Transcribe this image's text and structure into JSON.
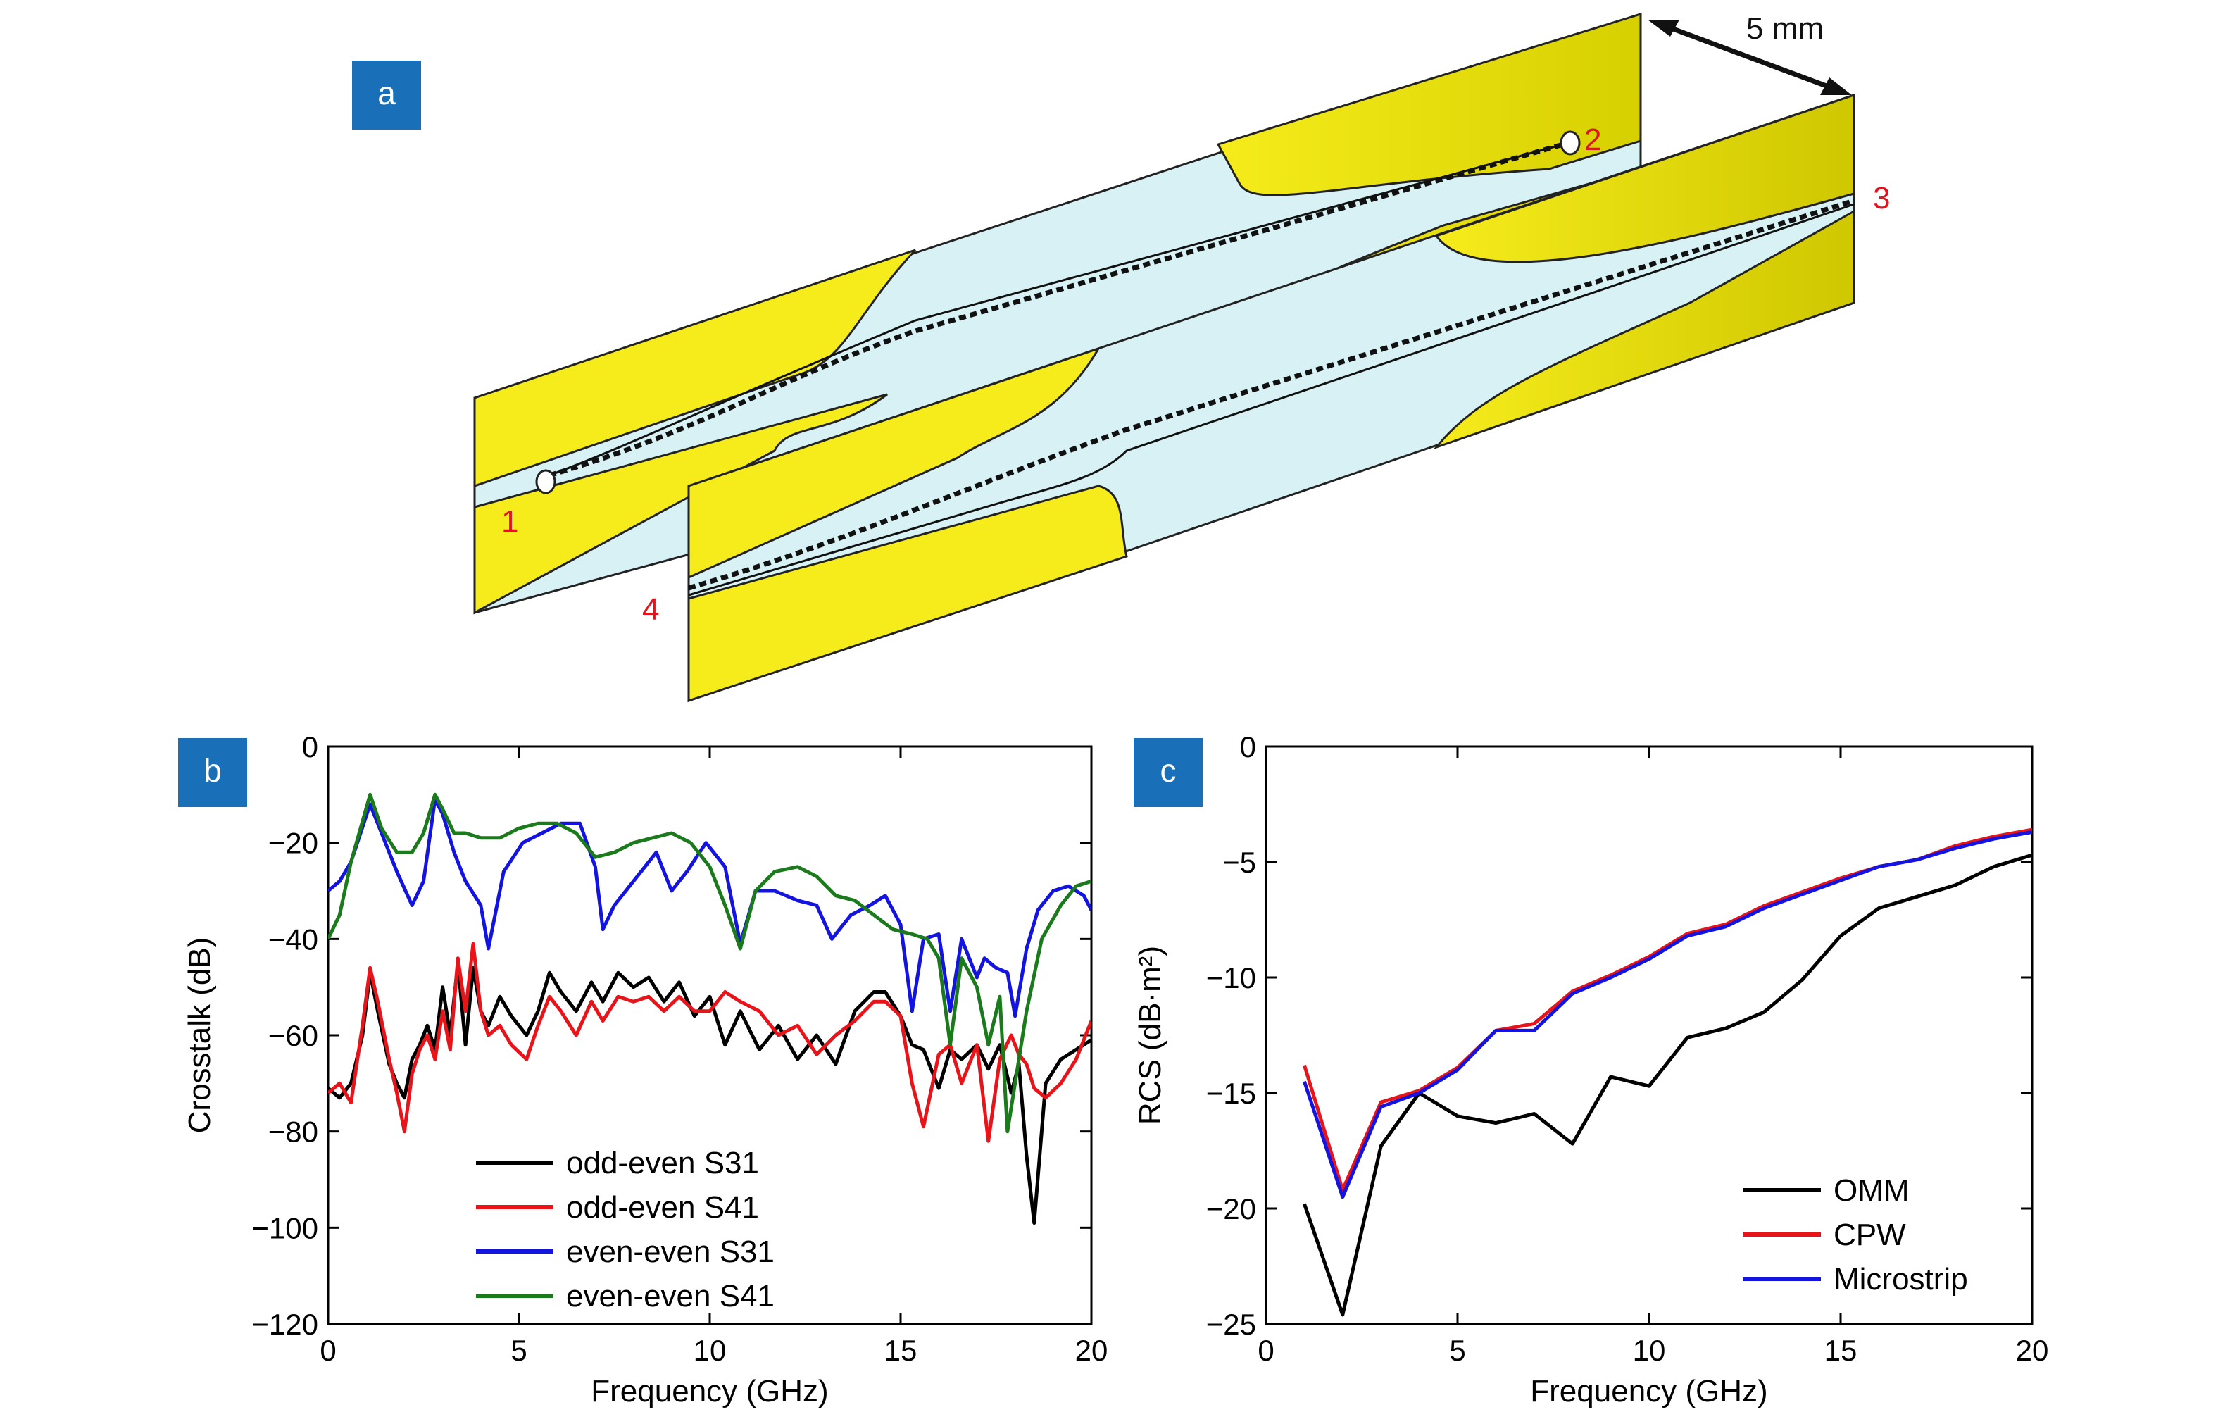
{
  "panels": {
    "a": {
      "label": "a"
    },
    "b": {
      "label": "b"
    },
    "c": {
      "label": "c"
    }
  },
  "diagram": {
    "dimension_label": "5 mm",
    "port_labels": [
      "1",
      "2",
      "3",
      "4"
    ],
    "colors": {
      "conductor": "#f5e800",
      "substrate": "#d7f1f4",
      "port_label": "#e0141e"
    }
  },
  "chart_data": [
    {
      "type": "line",
      "panel": "b",
      "title": "",
      "xlabel": "Frequency (GHz)",
      "ylabel": "Crosstalk (dB)",
      "xlim": [
        0,
        20
      ],
      "ylim": [
        -120,
        0
      ],
      "xticks": [
        "0",
        "5",
        "10",
        "15",
        "20"
      ],
      "yticks": [
        "0",
        "−20",
        "−40",
        "−60",
        "−80",
        "−100",
        "−120"
      ],
      "legend_position": "bottom-center",
      "grid": false,
      "series": [
        {
          "name": "odd-even S31",
          "color": "#000000",
          "x": [
            0,
            0.3,
            0.6,
            0.9,
            1.1,
            1.3,
            1.6,
            1.8,
            2.0,
            2.2,
            2.4,
            2.6,
            2.8,
            3.0,
            3.2,
            3.4,
            3.6,
            3.8,
            4.0,
            4.2,
            4.5,
            4.8,
            5.2,
            5.5,
            5.8,
            6.1,
            6.5,
            6.9,
            7.2,
            7.6,
            8.0,
            8.4,
            8.8,
            9.2,
            9.6,
            10.0,
            10.4,
            10.8,
            11.3,
            11.8,
            12.3,
            12.8,
            13.3,
            13.8,
            14.3,
            14.6,
            15.0,
            15.3,
            15.6,
            16.0,
            16.3,
            16.6,
            17.0,
            17.3,
            17.6,
            17.9,
            18.1,
            18.3,
            18.5,
            18.8,
            19.2,
            19.6,
            20.0
          ],
          "y": [
            -71,
            -73,
            -70,
            -60,
            -47,
            -55,
            -66,
            -70,
            -73,
            -65,
            -62,
            -58,
            -63,
            -50,
            -60,
            -45,
            -62,
            -46,
            -55,
            -58,
            -52,
            -56,
            -60,
            -55,
            -47,
            -51,
            -55,
            -49,
            -53,
            -47,
            -50,
            -48,
            -53,
            -49,
            -56,
            -52,
            -62,
            -55,
            -63,
            -58,
            -65,
            -60,
            -66,
            -55,
            -51,
            -51,
            -56,
            -62,
            -63,
            -71,
            -63,
            -65,
            -62,
            -67,
            -62,
            -72,
            -66,
            -85,
            -99,
            -70,
            -65,
            -63,
            -61
          ]
        },
        {
          "name": "odd-even S41",
          "color": "#e8141a",
          "x": [
            0,
            0.3,
            0.6,
            0.9,
            1.1,
            1.3,
            1.6,
            1.8,
            2.0,
            2.2,
            2.4,
            2.6,
            2.8,
            3.0,
            3.2,
            3.4,
            3.6,
            3.8,
            4.0,
            4.2,
            4.5,
            4.8,
            5.2,
            5.5,
            5.8,
            6.1,
            6.5,
            6.9,
            7.2,
            7.6,
            8.0,
            8.4,
            8.8,
            9.2,
            9.6,
            10.0,
            10.4,
            10.8,
            11.3,
            11.8,
            12.3,
            12.8,
            13.3,
            13.8,
            14.3,
            14.6,
            15.0,
            15.3,
            15.6,
            16.0,
            16.3,
            16.6,
            17.0,
            17.3,
            17.6,
            17.9,
            18.1,
            18.3,
            18.5,
            18.8,
            19.2,
            19.6,
            20.0
          ],
          "y": [
            -72,
            -70,
            -74,
            -58,
            -46,
            -53,
            -65,
            -72,
            -80,
            -68,
            -63,
            -60,
            -65,
            -55,
            -63,
            -44,
            -55,
            -41,
            -55,
            -60,
            -58,
            -62,
            -65,
            -58,
            -52,
            -55,
            -60,
            -53,
            -57,
            -52,
            -53,
            -52,
            -55,
            -52,
            -55,
            -55,
            -51,
            -53,
            -55,
            -60,
            -58,
            -64,
            -60,
            -57,
            -53,
            -53,
            -56,
            -70,
            -79,
            -64,
            -62,
            -70,
            -62,
            -82,
            -65,
            -60,
            -64,
            -66,
            -71,
            -73,
            -70,
            -65,
            -57
          ]
        },
        {
          "name": "even-even S31",
          "color": "#1414e0",
          "x": [
            0,
            0.3,
            0.6,
            1.1,
            1.4,
            1.8,
            2.2,
            2.5,
            2.8,
            3.0,
            3.3,
            3.6,
            4.0,
            4.2,
            4.6,
            5.1,
            5.6,
            6.1,
            6.6,
            7.0,
            7.2,
            7.5,
            8.0,
            8.6,
            9.0,
            9.4,
            9.9,
            10.4,
            10.8,
            11.2,
            11.7,
            12.3,
            12.8,
            13.2,
            13.7,
            14.2,
            14.6,
            15.0,
            15.3,
            15.6,
            16.0,
            16.3,
            16.6,
            17.0,
            17.2,
            17.5,
            17.8,
            18.0,
            18.3,
            18.6,
            19.0,
            19.4,
            19.8,
            20.0
          ],
          "y": [
            -30,
            -28,
            -24,
            -12,
            -18,
            -26,
            -33,
            -28,
            -11,
            -14,
            -22,
            -28,
            -33,
            -42,
            -26,
            -20,
            -18,
            -16,
            -16,
            -25,
            -38,
            -33,
            -28,
            -22,
            -30,
            -26,
            -20,
            -25,
            -41,
            -30,
            -30,
            -32,
            -33,
            -40,
            -35,
            -33,
            -31,
            -37,
            -55,
            -40,
            -39,
            -55,
            -40,
            -48,
            -44,
            -46,
            -47,
            -56,
            -42,
            -34,
            -30,
            -29,
            -31,
            -34
          ]
        },
        {
          "name": "even-even S41",
          "color": "#1b7a1b",
          "x": [
            0,
            0.3,
            0.6,
            1.1,
            1.4,
            1.8,
            2.2,
            2.5,
            2.8,
            3.0,
            3.3,
            3.6,
            4.0,
            4.5,
            5.0,
            5.5,
            6.0,
            6.5,
            7.0,
            7.5,
            8.0,
            8.5,
            9.0,
            9.5,
            10.0,
            10.4,
            10.8,
            11.2,
            11.7,
            12.3,
            12.8,
            13.3,
            13.8,
            14.3,
            14.8,
            15.3,
            15.7,
            16.0,
            16.3,
            16.6,
            17.0,
            17.3,
            17.6,
            17.8,
            18.0,
            18.3,
            18.7,
            19.2,
            19.6,
            20.0
          ],
          "y": [
            -40,
            -35,
            -24,
            -10,
            -17,
            -22,
            -22,
            -18,
            -10,
            -13,
            -18,
            -18,
            -19,
            -19,
            -17,
            -16,
            -16,
            -18,
            -23,
            -22,
            -20,
            -19,
            -18,
            -20,
            -25,
            -33,
            -42,
            -30,
            -26,
            -25,
            -27,
            -31,
            -32,
            -35,
            -38,
            -39,
            -40,
            -44,
            -62,
            -44,
            -50,
            -62,
            -52,
            -80,
            -70,
            -55,
            -40,
            -33,
            -29,
            -28
          ]
        }
      ]
    },
    {
      "type": "line",
      "panel": "c",
      "title": "",
      "xlabel": "Frequency (GHz)",
      "ylabel": "RCS (dB·m²)",
      "xlim": [
        0,
        20
      ],
      "ylim": [
        -25,
        0
      ],
      "xticks": [
        "0",
        "5",
        "10",
        "15",
        "20"
      ],
      "yticks": [
        "0",
        "−5",
        "−10",
        "−15",
        "−20",
        "−25"
      ],
      "legend_position": "bottom-right",
      "grid": false,
      "series": [
        {
          "name": "OMM",
          "color": "#000000",
          "x": [
            1,
            2,
            3,
            4,
            5,
            6,
            7,
            8,
            9,
            10,
            11,
            12,
            13,
            14,
            15,
            16,
            17,
            18,
            19,
            20
          ],
          "y": [
            -19.8,
            -24.6,
            -17.3,
            -15.0,
            -16.0,
            -16.3,
            -15.9,
            -17.2,
            -14.3,
            -14.7,
            -12.6,
            -12.2,
            -11.5,
            -10.1,
            -8.2,
            -7.0,
            -6.5,
            -6.0,
            -5.2,
            -4.7
          ]
        },
        {
          "name": "CPW",
          "color": "#e8141a",
          "x": [
            1,
            2,
            3,
            4,
            5,
            6,
            7,
            8,
            9,
            10,
            11,
            12,
            13,
            14,
            15,
            16,
            17,
            18,
            19,
            20
          ],
          "y": [
            -13.8,
            -19.2,
            -15.4,
            -14.9,
            -13.9,
            -12.3,
            -12.0,
            -10.6,
            -9.9,
            -9.1,
            -8.1,
            -7.7,
            -6.9,
            -6.3,
            -5.7,
            -5.2,
            -4.9,
            -4.3,
            -3.9,
            -3.6
          ]
        },
        {
          "name": "Microstrip",
          "color": "#1414e0",
          "x": [
            1,
            2,
            3,
            4,
            5,
            6,
            7,
            8,
            9,
            10,
            11,
            12,
            13,
            14,
            15,
            16,
            17,
            18,
            19,
            20
          ],
          "y": [
            -14.5,
            -19.5,
            -15.6,
            -15.0,
            -14.0,
            -12.3,
            -12.3,
            -10.7,
            -10.0,
            -9.2,
            -8.2,
            -7.8,
            -7.0,
            -6.4,
            -5.8,
            -5.2,
            -4.9,
            -4.4,
            -4.0,
            -3.7
          ]
        }
      ]
    }
  ]
}
